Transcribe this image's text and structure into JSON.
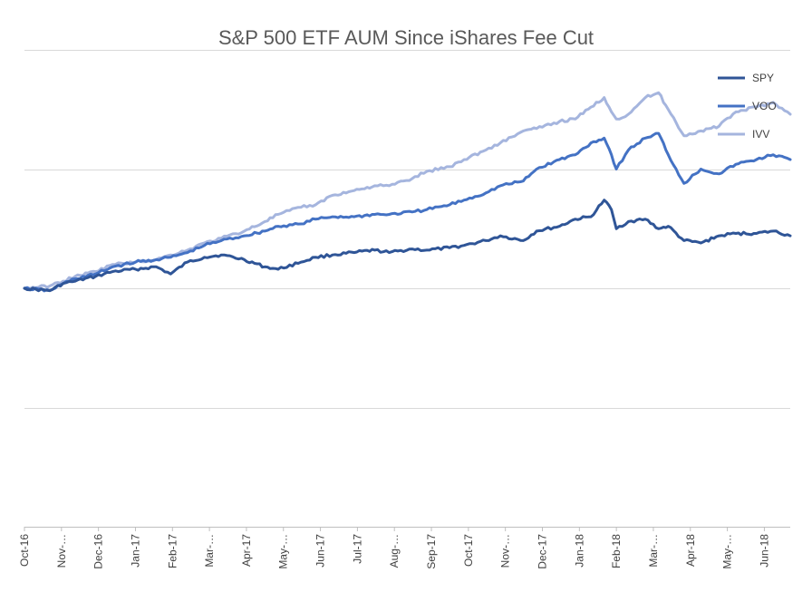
{
  "chart_data": {
    "type": "line",
    "title": "S&P 500 ETF AUM Since iShares Fee Cut",
    "xlabel": "",
    "ylabel": "",
    "x_tick_labels": [
      "Oct-16",
      "Nov-…",
      "Dec-16",
      "Jan-17",
      "Feb-17",
      "Mar-…",
      "Apr-17",
      "May-…",
      "Jun-17",
      "Jul-17",
      "Aug-…",
      "Sep-17",
      "Oct-17",
      "Nov-…",
      "Dec-17",
      "Jan-18",
      "Feb-18",
      "Mar-…",
      "Apr-18",
      "May-…",
      "Jun-18"
    ],
    "y_tick_labels": [],
    "ylim": [
      -200,
      200
    ],
    "gridlines": true,
    "legend_position": "top-right",
    "x": [
      "2016-10-03",
      "2016-10-24",
      "2016-11-04",
      "2016-11-14",
      "2016-12-01",
      "2016-12-15",
      "2017-01-03",
      "2017-01-20",
      "2017-02-01",
      "2017-02-15",
      "2017-03-01",
      "2017-03-15",
      "2017-04-03",
      "2017-04-20",
      "2017-05-01",
      "2017-05-20",
      "2017-06-01",
      "2017-06-15",
      "2017-07-03",
      "2017-07-20",
      "2017-08-01",
      "2017-08-20",
      "2017-09-01",
      "2017-09-20",
      "2017-10-02",
      "2017-10-20",
      "2017-11-01",
      "2017-11-20",
      "2017-12-01",
      "2017-12-20",
      "2018-01-02",
      "2018-01-15",
      "2018-01-26",
      "2018-02-01",
      "2018-02-05",
      "2018-02-15",
      "2018-03-01",
      "2018-03-12",
      "2018-03-20",
      "2018-04-02",
      "2018-04-16",
      "2018-05-01",
      "2018-05-15",
      "2018-06-01",
      "2018-06-15",
      "2018-06-29"
    ],
    "series": [
      {
        "name": "SPY",
        "color": "#2f5597",
        "values": [
          0,
          -2,
          4,
          6,
          10,
          14,
          16,
          18,
          12,
          22,
          26,
          28,
          24,
          18,
          16,
          22,
          26,
          28,
          30,
          32,
          30,
          33,
          32,
          34,
          36,
          40,
          44,
          40,
          48,
          52,
          58,
          60,
          74,
          66,
          50,
          56,
          58,
          50,
          52,
          40,
          38,
          44,
          46,
          46,
          48,
          44
        ]
      },
      {
        "name": "VOO",
        "color": "#4472c4",
        "values": [
          0,
          -2,
          4,
          8,
          12,
          18,
          22,
          24,
          26,
          30,
          36,
          40,
          44,
          48,
          52,
          54,
          58,
          60,
          60,
          62,
          62,
          64,
          66,
          70,
          74,
          80,
          86,
          90,
          100,
          108,
          112,
          122,
          126,
          112,
          100,
          116,
          126,
          130,
          112,
          88,
          100,
          96,
          104,
          108,
          112,
          108
        ]
      },
      {
        "name": "IVV",
        "color": "#a5b5de",
        "values": [
          0,
          2,
          6,
          10,
          14,
          20,
          22,
          24,
          28,
          32,
          38,
          42,
          48,
          56,
          62,
          68,
          70,
          78,
          82,
          86,
          86,
          92,
          98,
          102,
          108,
          116,
          122,
          132,
          134,
          140,
          142,
          152,
          160,
          148,
          142,
          146,
          160,
          164,
          150,
          128,
          132,
          136,
          148,
          152,
          156,
          146
        ]
      }
    ]
  }
}
